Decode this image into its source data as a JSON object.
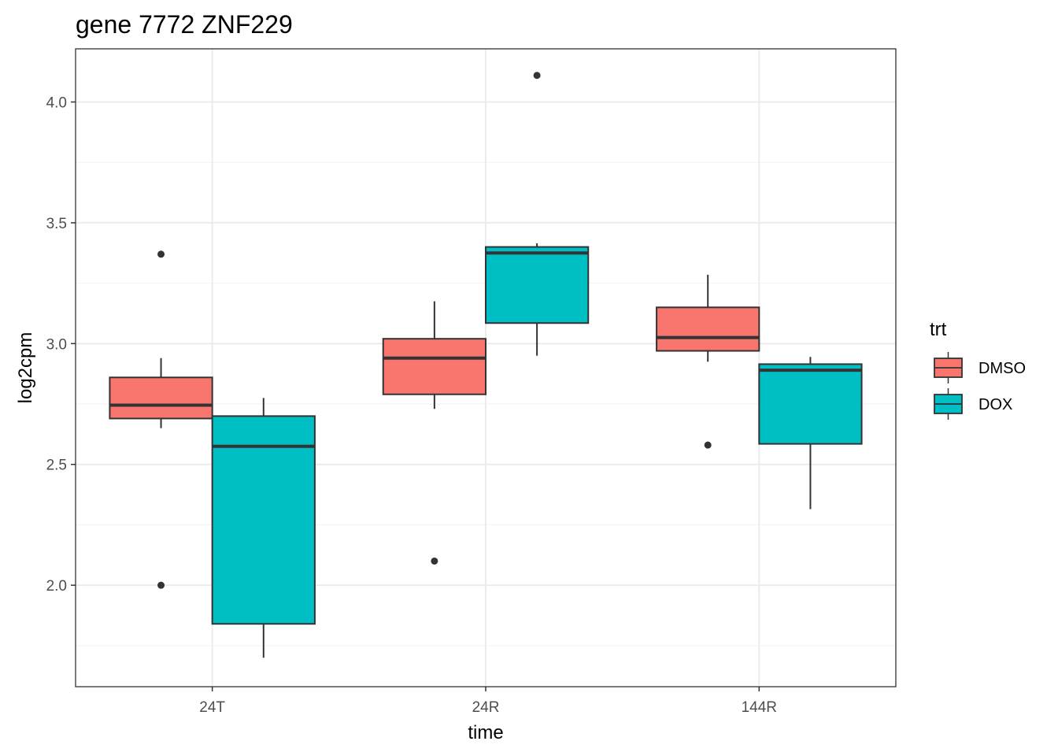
{
  "chart_data": {
    "type": "boxplot",
    "title": "gene 7772 ZNF229",
    "xlabel": "time",
    "ylabel": "log2cpm",
    "categories": [
      "24T",
      "24R",
      "144R"
    ],
    "ylim": [
      1.58,
      4.22
    ],
    "yticks": [
      2.0,
      2.5,
      3.0,
      3.5,
      4.0
    ],
    "ytick_labels": [
      "2.0",
      "2.5",
      "3.0",
      "3.5",
      "4.0"
    ],
    "grid": true,
    "legend": {
      "title": "trt",
      "position": "right",
      "entries": [
        {
          "label": "DMSO",
          "color": "#F8766D"
        },
        {
          "label": "DOX",
          "color": "#00BFC4"
        }
      ]
    },
    "series": [
      {
        "name": "DMSO",
        "color": "#F8766D",
        "boxes": [
          {
            "category": "24T",
            "whisker_low": 2.65,
            "q1": 2.69,
            "median": 2.745,
            "q3": 2.86,
            "whisker_high": 2.94,
            "outliers": [
              3.37,
              2.0
            ]
          },
          {
            "category": "24R",
            "whisker_low": 2.73,
            "q1": 2.79,
            "median": 2.94,
            "q3": 3.02,
            "whisker_high": 3.175,
            "outliers": [
              2.1
            ]
          },
          {
            "category": "144R",
            "whisker_low": 2.925,
            "q1": 2.97,
            "median": 3.025,
            "q3": 3.15,
            "whisker_high": 3.285,
            "outliers": [
              2.58
            ]
          }
        ]
      },
      {
        "name": "DOX",
        "color": "#00BFC4",
        "boxes": [
          {
            "category": "24T",
            "whisker_low": 1.7,
            "q1": 1.84,
            "median": 2.575,
            "q3": 2.7,
            "whisker_high": 2.775,
            "outliers": []
          },
          {
            "category": "24R",
            "whisker_low": 2.95,
            "q1": 3.085,
            "median": 3.375,
            "q3": 3.4,
            "whisker_high": 3.415,
            "outliers": [
              4.11
            ]
          },
          {
            "category": "144R",
            "whisker_low": 2.315,
            "q1": 2.585,
            "median": 2.89,
            "q3": 2.915,
            "whisker_high": 2.945,
            "outliers": []
          }
        ]
      }
    ]
  }
}
